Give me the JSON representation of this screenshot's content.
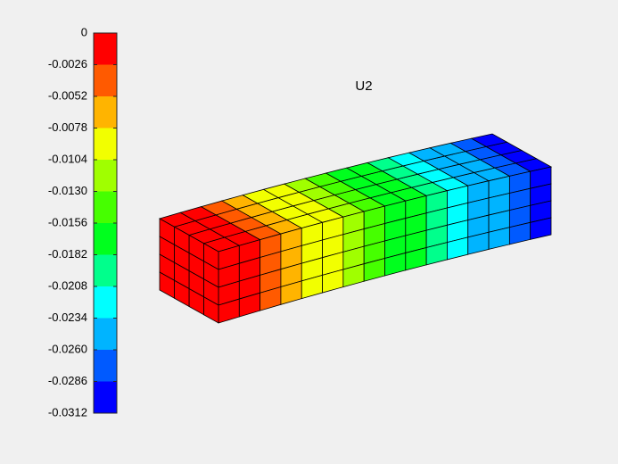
{
  "chart_data": {
    "type": "contour",
    "title": "U2",
    "ylim": [
      -0.0312,
      0
    ],
    "yticks": [
      0,
      -0.0026,
      -0.0052,
      -0.0078,
      -0.0104,
      {
        "value": -0.013,
        "label": "-0.0130"
      },
      -0.0156,
      -0.0182,
      -0.0208,
      -0.0234,
      {
        "value": -0.026,
        "label": "-0.0260"
      },
      -0.0286,
      -0.0312
    ],
    "colors": [
      "#ff0000",
      "#ff5a00",
      "#ffb400",
      "#f2ff00",
      "#a0ff00",
      "#46ff00",
      "#00ff1e",
      "#00ff8c",
      "#00ffff",
      "#00b4ff",
      "#005aff",
      "#0000ff"
    ]
  }
}
